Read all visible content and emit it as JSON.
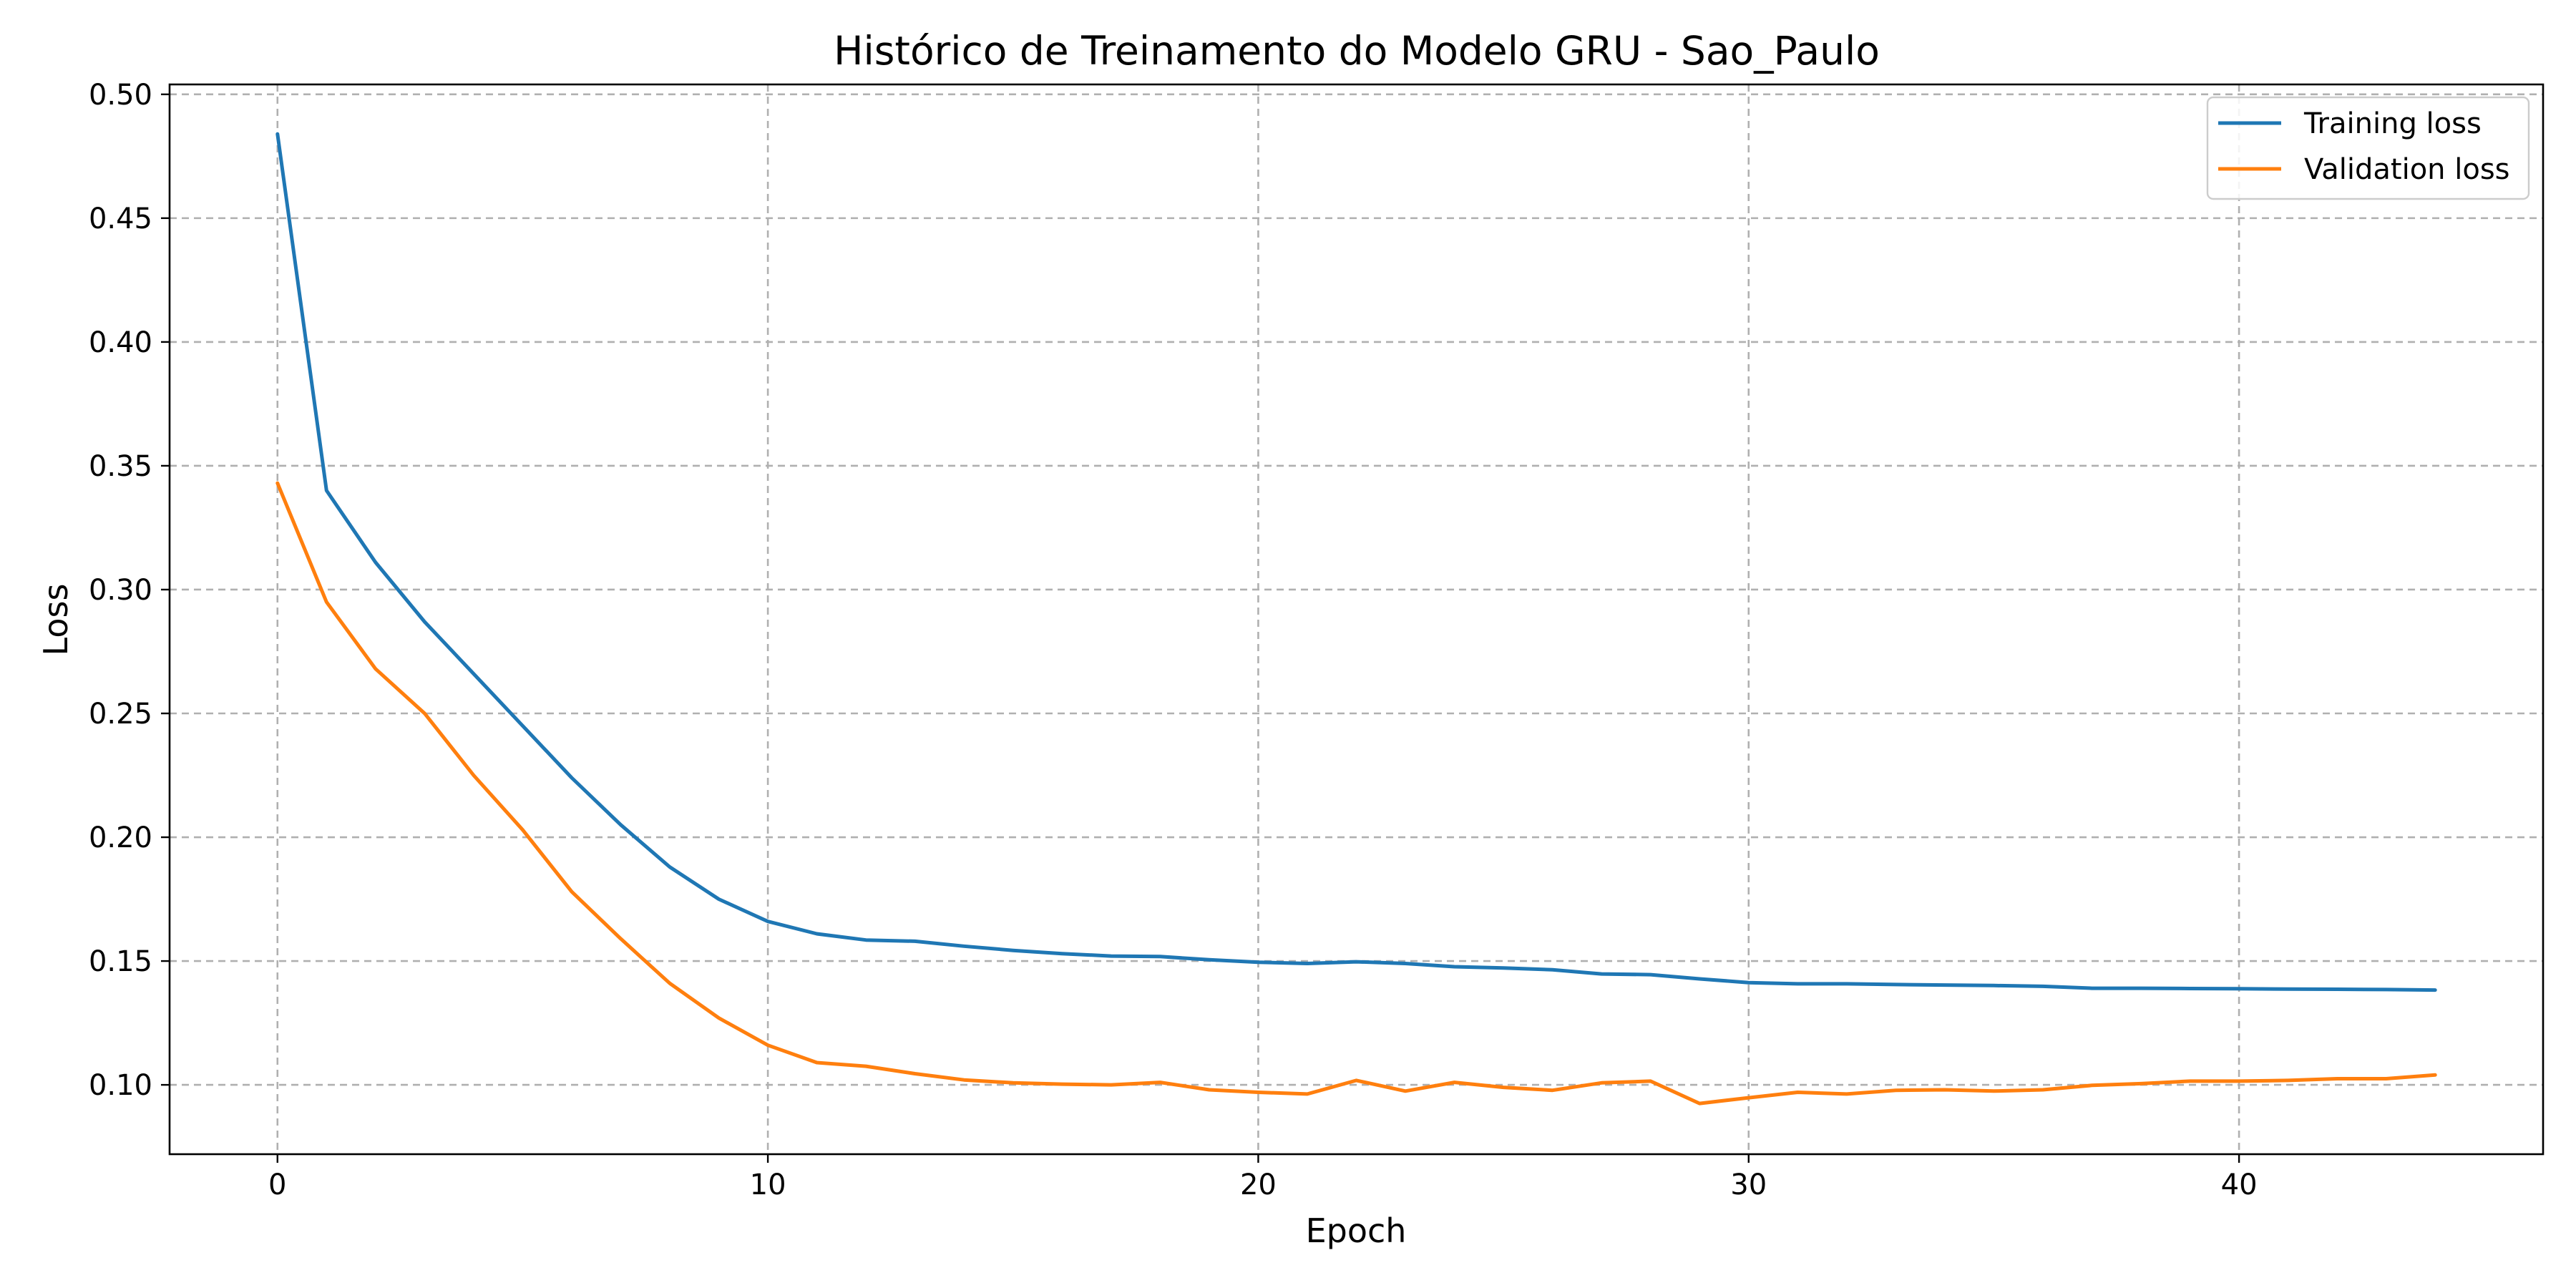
{
  "chart_data": {
    "type": "line",
    "title": "Histórico de Treinamento do Modelo GRU - Sao_Paulo",
    "xlabel": "Epoch",
    "ylabel": "Loss",
    "xlim": [
      -2.2,
      46.2
    ],
    "ylim": [
      0.072,
      0.504
    ],
    "xticks": [
      0,
      10,
      20,
      30,
      40
    ],
    "yticks": [
      0.1,
      0.15,
      0.2,
      0.25,
      0.3,
      0.35,
      0.4,
      0.45,
      0.5
    ],
    "grid": true,
    "legend_position": "top-right",
    "x": [
      0,
      1,
      2,
      3,
      4,
      5,
      6,
      7,
      8,
      9,
      10,
      11,
      12,
      13,
      14,
      15,
      16,
      17,
      18,
      19,
      20,
      21,
      22,
      23,
      24,
      25,
      26,
      27,
      28,
      29,
      30,
      31,
      32,
      33,
      34,
      35,
      36,
      37,
      38,
      39,
      40,
      41,
      42,
      43,
      44
    ],
    "series": [
      {
        "name": "Training loss",
        "color": "#1f77b4",
        "values": [
          0.484,
          0.34,
          0.311,
          0.287,
          0.266,
          0.245,
          0.224,
          0.205,
          0.188,
          0.175,
          0.166,
          0.161,
          0.1585,
          0.158,
          0.156,
          0.1543,
          0.153,
          0.152,
          0.1518,
          0.1505,
          0.1495,
          0.149,
          0.1497,
          0.149,
          0.1477,
          0.1472,
          0.1465,
          0.1448,
          0.1445,
          0.1428,
          0.1413,
          0.1408,
          0.1408,
          0.1405,
          0.1403,
          0.1401,
          0.1398,
          0.139,
          0.139,
          0.1389,
          0.1388,
          0.1387,
          0.1386,
          0.1385,
          0.1383
        ]
      },
      {
        "name": "Validation loss",
        "color": "#ff7f0e",
        "values": [
          0.343,
          0.295,
          0.268,
          0.25,
          0.225,
          0.203,
          0.178,
          0.159,
          0.141,
          0.127,
          0.116,
          0.109,
          0.1075,
          0.1045,
          0.102,
          0.1008,
          0.1003,
          0.1,
          0.101,
          0.098,
          0.097,
          0.0963,
          0.1018,
          0.0975,
          0.101,
          0.099,
          0.0978,
          0.1008,
          0.1015,
          0.0925,
          0.0948,
          0.097,
          0.0963,
          0.0978,
          0.098,
          0.0975,
          0.098,
          0.0998,
          0.1005,
          0.1015,
          0.1015,
          0.1018,
          0.1025,
          0.1025,
          0.104
        ]
      }
    ]
  }
}
